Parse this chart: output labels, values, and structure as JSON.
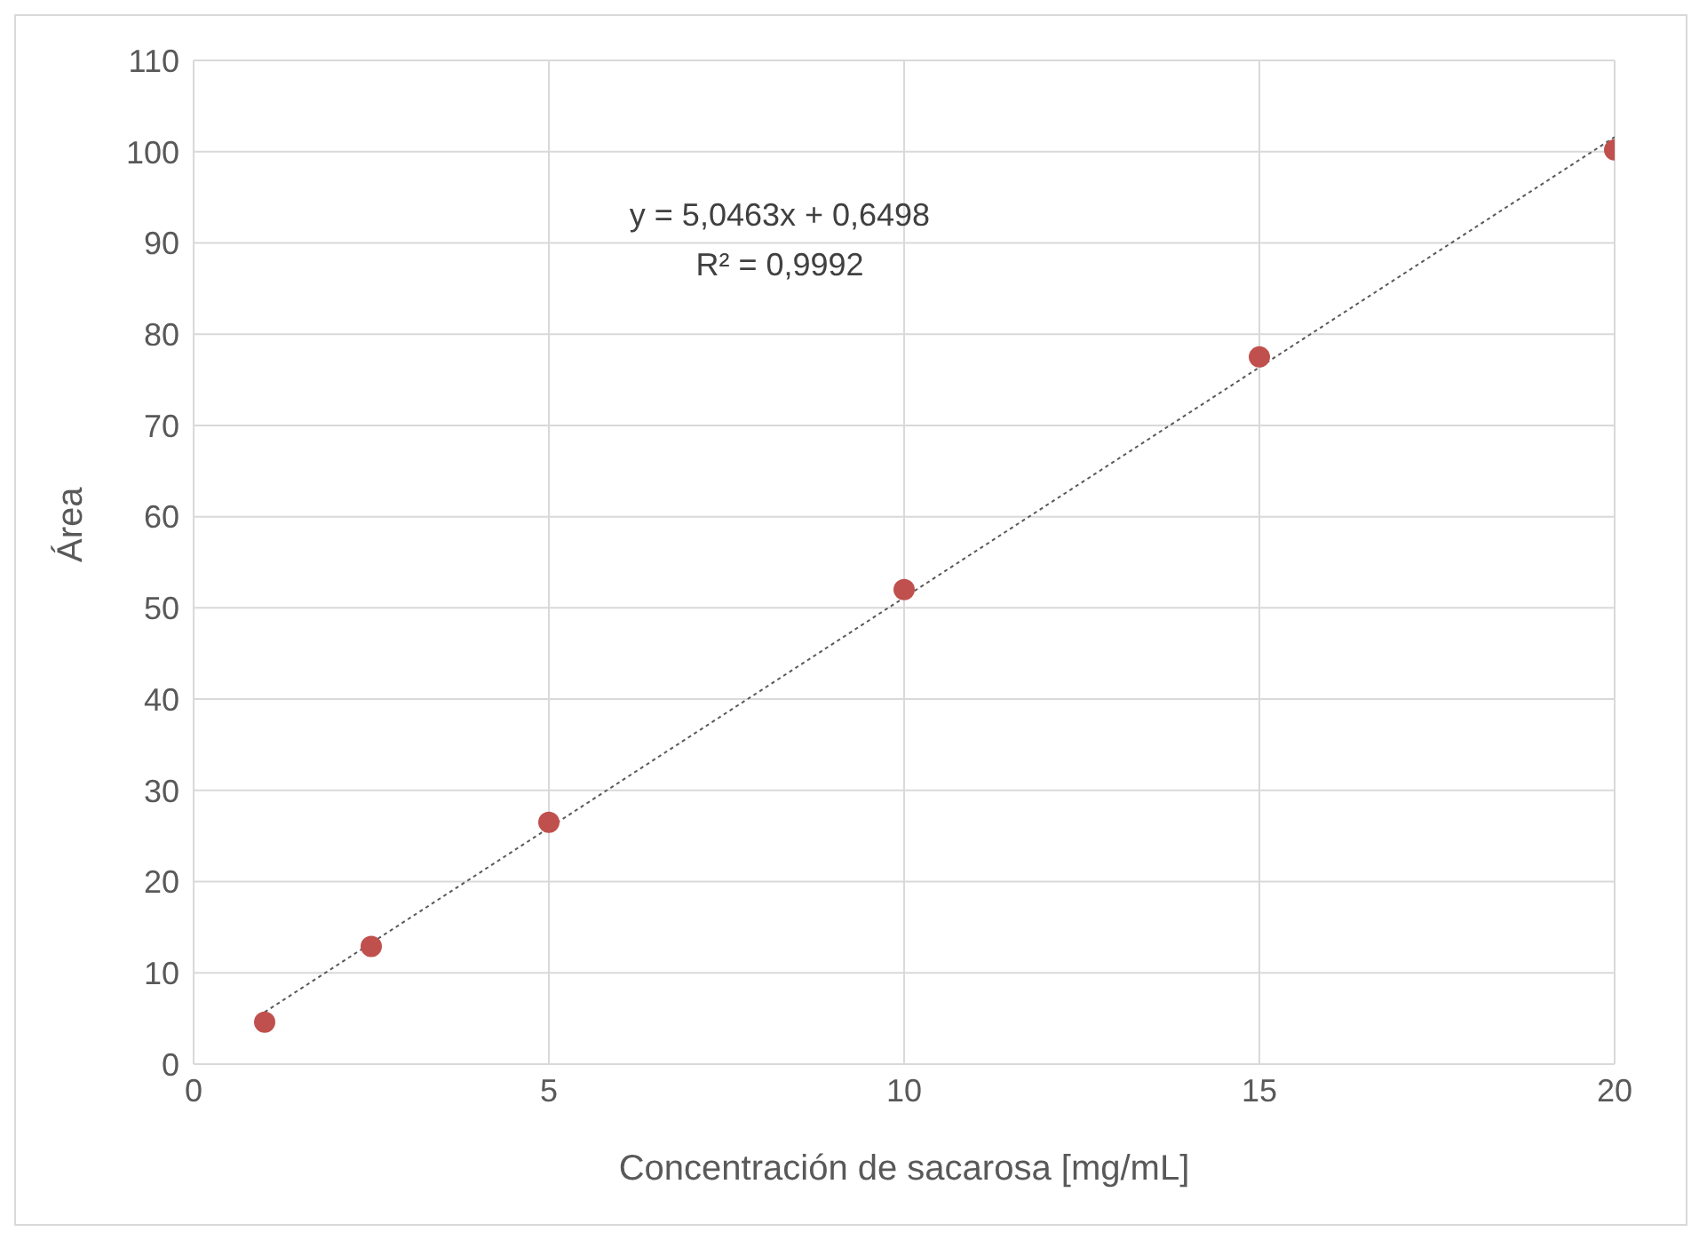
{
  "chart_data": {
    "type": "scatter",
    "xlabel": "Concentración de sacarosa [mg/mL]",
    "ylabel": "Área",
    "annotations": [
      "y = 5,0463x + 0,6498",
      "R² = 0,9992"
    ],
    "xlim": [
      0,
      20
    ],
    "xticks": [
      0,
      5,
      10,
      15,
      20
    ],
    "ylim": [
      0,
      110
    ],
    "yticks": [
      0,
      10,
      20,
      30,
      40,
      50,
      60,
      70,
      80,
      90,
      100,
      110
    ],
    "grid": true,
    "series": [
      {
        "type": "scatter",
        "color": "#c0504d",
        "marker": "circle",
        "x": [
          1,
          2.5,
          5,
          10,
          15,
          20
        ],
        "values": [
          4.6,
          12.9,
          26.5,
          52.0,
          77.5,
          100.2
        ]
      },
      {
        "type": "line",
        "color": "#595959",
        "marker": "none",
        "line_style": "dotted",
        "x": [
          1,
          20
        ],
        "values": [
          5.7,
          101.6
        ]
      }
    ]
  }
}
